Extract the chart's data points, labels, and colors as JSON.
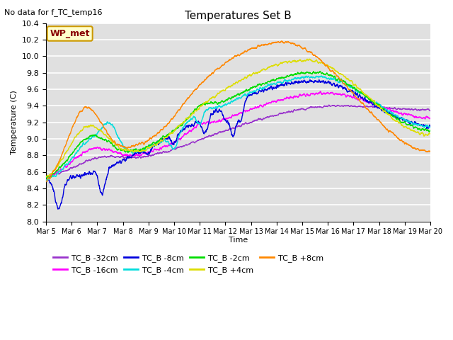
{
  "title": "Temperatures Set B",
  "subtitle": "No data for f_TC_temp16",
  "ylabel": "Temperature (C)",
  "xlabel": "Time",
  "ylim": [
    8.0,
    10.4
  ],
  "xtick_labels": [
    "Mar 5",
    "Mar 6",
    "Mar 7",
    "Mar 8",
    "Mar 9",
    "Mar 10",
    "Mar 11",
    "Mar 12",
    "Mar 13",
    "Mar 14",
    "Mar 15",
    "Mar 16",
    "Mar 17",
    "Mar 18",
    "Mar 19",
    "Mar 20"
  ],
  "series_names": [
    "TC_B -32cm",
    "TC_B -16cm",
    "TC_B -8cm",
    "TC_B -4cm",
    "TC_B -2cm",
    "TC_B +4cm",
    "TC_B +8cm"
  ],
  "series_colors": [
    "#9933cc",
    "#ff00ff",
    "#0000dd",
    "#00dddd",
    "#00dd00",
    "#dddd00",
    "#ff8800"
  ],
  "legend_label": "WP_met",
  "legend_bg": "#ffffcc",
  "legend_border": "#cc9900",
  "legend_text_color": "#880000",
  "bg_color": "#e0e0e0",
  "grid_color": "#ffffff",
  "linewidth": 1.0
}
